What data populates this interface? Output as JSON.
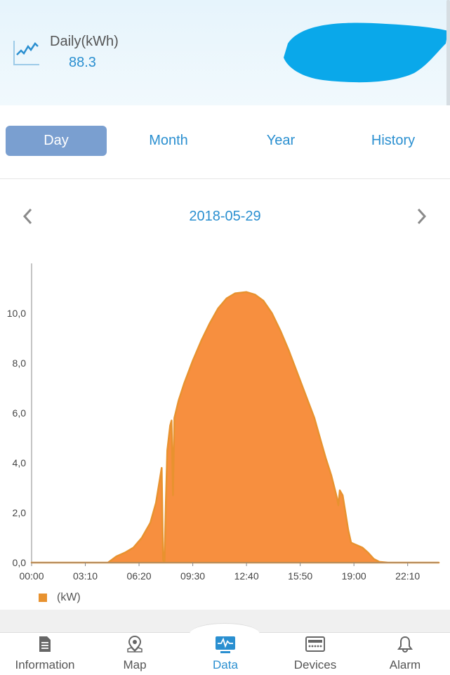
{
  "header": {
    "daily_label": "Daily(kWh)",
    "daily_value": "88.3"
  },
  "tabs": [
    {
      "label": "Day",
      "active": true
    },
    {
      "label": "Month",
      "active": false
    },
    {
      "label": "Year",
      "active": false
    },
    {
      "label": "History",
      "active": false
    }
  ],
  "date_nav": {
    "prev_icon": "chevron-left-icon",
    "date": "2018-05-29",
    "next_icon": "chevron-right-icon"
  },
  "chart_data": {
    "type": "area",
    "x_ticks": [
      "00:00",
      "03:10",
      "06:20",
      "09:30",
      "12:40",
      "15:50",
      "19:00",
      "22:10"
    ],
    "y_ticks": [
      "0,0",
      "2,0",
      "4,0",
      "6,0",
      "8,0",
      "10,0"
    ],
    "ylim": [
      0,
      12
    ],
    "xlim_minutes": [
      0,
      1440
    ],
    "series": [
      {
        "name": "(kW)",
        "color": "#f78f3f",
        "stroke": "#e8922f",
        "points": [
          [
            "00:00",
            0
          ],
          [
            "04:30",
            0
          ],
          [
            "05:00",
            0.25
          ],
          [
            "05:30",
            0.4
          ],
          [
            "06:00",
            0.6
          ],
          [
            "06:30",
            1.0
          ],
          [
            "07:00",
            1.6
          ],
          [
            "07:20",
            2.4
          ],
          [
            "07:40",
            3.8
          ],
          [
            "07:45",
            0.1
          ],
          [
            "07:50",
            0.0
          ],
          [
            "07:55",
            2.5
          ],
          [
            "08:00",
            4.5
          ],
          [
            "08:10",
            5.5
          ],
          [
            "08:15",
            5.7
          ],
          [
            "08:20",
            2.7
          ],
          [
            "08:25",
            5.8
          ],
          [
            "08:40",
            6.5
          ],
          [
            "09:00",
            7.2
          ],
          [
            "09:30",
            8.1
          ],
          [
            "10:00",
            8.9
          ],
          [
            "10:30",
            9.6
          ],
          [
            "11:00",
            10.2
          ],
          [
            "11:30",
            10.6
          ],
          [
            "12:00",
            10.8
          ],
          [
            "12:40",
            10.85
          ],
          [
            "13:10",
            10.75
          ],
          [
            "13:40",
            10.5
          ],
          [
            "14:10",
            10.0
          ],
          [
            "14:40",
            9.3
          ],
          [
            "15:10",
            8.5
          ],
          [
            "15:40",
            7.6
          ],
          [
            "16:10",
            6.7
          ],
          [
            "16:40",
            5.8
          ],
          [
            "17:00",
            5.0
          ],
          [
            "17:20",
            4.2
          ],
          [
            "17:40",
            3.5
          ],
          [
            "18:00",
            2.6
          ],
          [
            "18:05",
            2.3
          ],
          [
            "18:10",
            2.9
          ],
          [
            "18:20",
            2.7
          ],
          [
            "18:30",
            2.0
          ],
          [
            "18:40",
            1.3
          ],
          [
            "18:50",
            0.8
          ],
          [
            "19:10",
            0.7
          ],
          [
            "19:30",
            0.6
          ],
          [
            "19:50",
            0.4
          ],
          [
            "20:10",
            0.15
          ],
          [
            "20:30",
            0.03
          ],
          [
            "21:00",
            0
          ],
          [
            "24:00",
            0
          ]
        ]
      }
    ],
    "legend": [
      "(kW)"
    ],
    "grid": false
  },
  "bottom_nav": [
    {
      "label": "Information",
      "icon": "document-icon",
      "active": false
    },
    {
      "label": "Map",
      "icon": "map-pin-icon",
      "active": false
    },
    {
      "label": "Data",
      "icon": "monitor-chart-icon",
      "active": true
    },
    {
      "label": "Devices",
      "icon": "server-icon",
      "active": false
    },
    {
      "label": "Alarm",
      "icon": "bell-icon",
      "active": false
    }
  ],
  "colors": {
    "accent": "#2a8fd0",
    "active_tab": "#7a9fd0",
    "area_fill": "#f78f3f",
    "redaction": "#0aa8ea"
  }
}
